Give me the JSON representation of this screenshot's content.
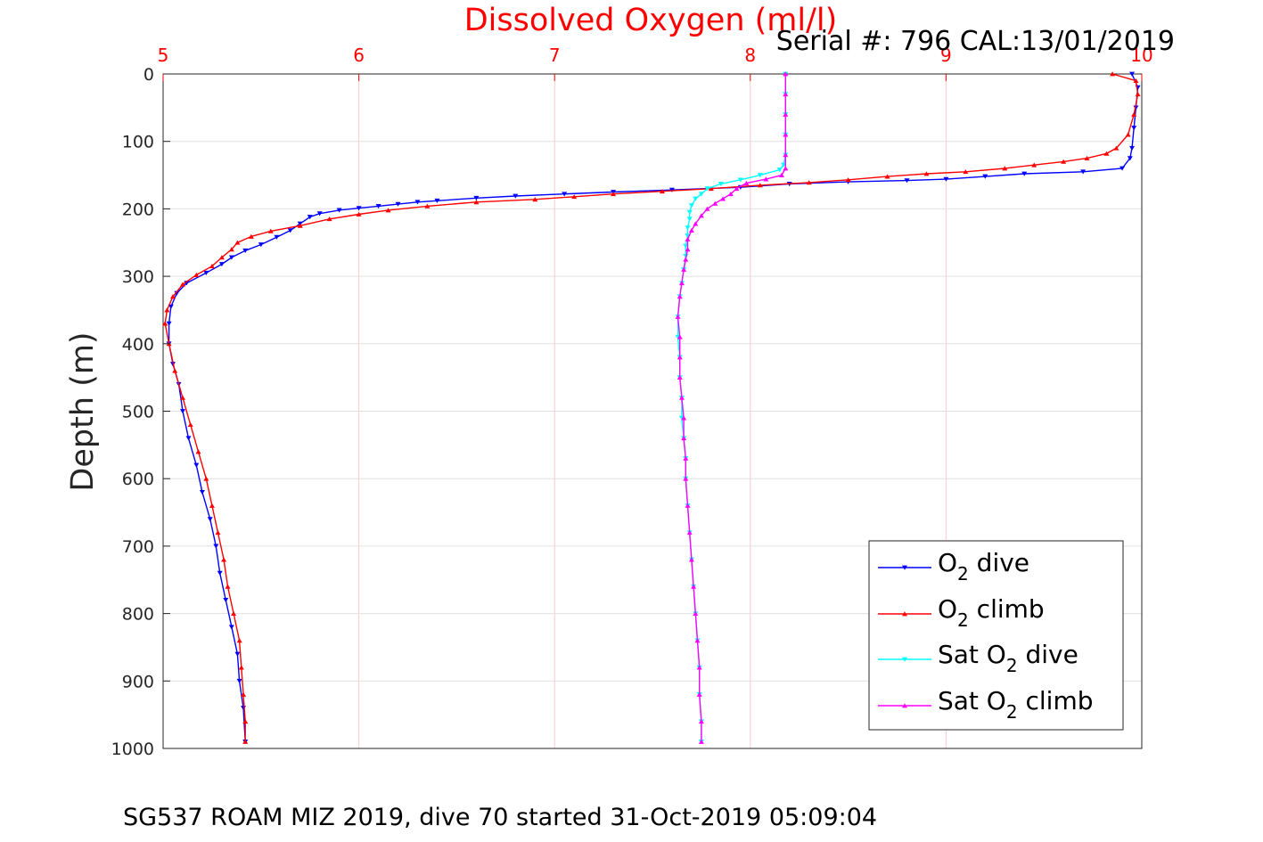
{
  "chart_data": {
    "type": "scatter",
    "title": "Dissolved Oxygen (ml/l)",
    "annotation": "Serial #: 796  CAL:13/01/2019",
    "caption": "SG537 ROAM MIZ 2019, dive 70 started 31-Oct-2019 05:09:04",
    "xlabel": "",
    "ylabel": "Depth (m)",
    "xlim": [
      5,
      10
    ],
    "ylim": [
      0,
      1000
    ],
    "y_reversed": true,
    "x_axis_position": "top",
    "x_ticks": [
      "5",
      "6",
      "7",
      "8",
      "9",
      "10"
    ],
    "y_ticks": [
      "0",
      "100",
      "200",
      "300",
      "400",
      "500",
      "600",
      "700",
      "800",
      "900",
      "1000"
    ],
    "grid": true,
    "legend_position": "bottom-right",
    "colors": {
      "title": "#ff0000",
      "x_ticks": "#ff0000",
      "grid": "#ffcccc",
      "y_grid": "#e0e0e0"
    },
    "legend": [
      {
        "base": "O",
        "sub": "2",
        "rest": " dive",
        "color": "#0000ff",
        "marker": "down-triangle"
      },
      {
        "base": "O",
        "sub": "2",
        "rest": " climb",
        "color": "#ff0000",
        "marker": "up-triangle"
      },
      {
        "base": "Sat O",
        "sub": "2",
        "rest": " dive",
        "color": "#00ffff",
        "marker": "down-triangle"
      },
      {
        "base": "Sat O",
        "sub": "2",
        "rest": " climb",
        "color": "#ff00ff",
        "marker": "up-triangle"
      }
    ],
    "series": [
      {
        "name": "O2 dive",
        "color": "#0000ff",
        "marker": "down",
        "points": [
          [
            9.95,
            0
          ],
          [
            9.98,
            20
          ],
          [
            9.97,
            50
          ],
          [
            9.96,
            80
          ],
          [
            9.95,
            110
          ],
          [
            9.94,
            125
          ],
          [
            9.9,
            140
          ],
          [
            9.7,
            145
          ],
          [
            9.4,
            148
          ],
          [
            9.2,
            152
          ],
          [
            9.0,
            156
          ],
          [
            8.8,
            158
          ],
          [
            8.5,
            160
          ],
          [
            8.2,
            163
          ],
          [
            7.95,
            168
          ],
          [
            7.6,
            172
          ],
          [
            7.3,
            175
          ],
          [
            7.05,
            178
          ],
          [
            6.8,
            181
          ],
          [
            6.6,
            184
          ],
          [
            6.4,
            188
          ],
          [
            6.3,
            190
          ],
          [
            6.2,
            193
          ],
          [
            6.1,
            196
          ],
          [
            6.0,
            199
          ],
          [
            5.9,
            202
          ],
          [
            5.8,
            207
          ],
          [
            5.75,
            212
          ],
          [
            5.7,
            222
          ],
          [
            5.65,
            232
          ],
          [
            5.58,
            242
          ],
          [
            5.5,
            253
          ],
          [
            5.42,
            262
          ],
          [
            5.35,
            272
          ],
          [
            5.3,
            282
          ],
          [
            5.22,
            295
          ],
          [
            5.12,
            310
          ],
          [
            5.07,
            325
          ],
          [
            5.04,
            345
          ],
          [
            5.03,
            370
          ],
          [
            5.03,
            400
          ],
          [
            5.05,
            430
          ],
          [
            5.08,
            460
          ],
          [
            5.1,
            500
          ],
          [
            5.13,
            540
          ],
          [
            5.17,
            580
          ],
          [
            5.2,
            620
          ],
          [
            5.24,
            660
          ],
          [
            5.27,
            700
          ],
          [
            5.29,
            740
          ],
          [
            5.32,
            780
          ],
          [
            5.35,
            820
          ],
          [
            5.38,
            860
          ],
          [
            5.39,
            900
          ],
          [
            5.41,
            940
          ],
          [
            5.42,
            990
          ]
        ]
      },
      {
        "name": "O2 climb",
        "color": "#ff0000",
        "marker": "up",
        "points": [
          [
            9.85,
            0
          ],
          [
            9.97,
            10
          ],
          [
            9.98,
            30
          ],
          [
            9.96,
            60
          ],
          [
            9.93,
            90
          ],
          [
            9.87,
            110
          ],
          [
            9.82,
            118
          ],
          [
            9.72,
            125
          ],
          [
            9.6,
            130
          ],
          [
            9.45,
            135
          ],
          [
            9.3,
            140
          ],
          [
            9.1,
            145
          ],
          [
            8.9,
            148
          ],
          [
            8.7,
            152
          ],
          [
            8.5,
            157
          ],
          [
            8.3,
            161
          ],
          [
            8.05,
            165
          ],
          [
            7.8,
            170
          ],
          [
            7.55,
            174
          ],
          [
            7.3,
            178
          ],
          [
            7.1,
            182
          ],
          [
            6.9,
            186
          ],
          [
            6.6,
            190
          ],
          [
            6.35,
            196
          ],
          [
            6.15,
            202
          ],
          [
            6.0,
            208
          ],
          [
            5.85,
            215
          ],
          [
            5.7,
            225
          ],
          [
            5.55,
            233
          ],
          [
            5.45,
            241
          ],
          [
            5.38,
            250
          ],
          [
            5.35,
            260
          ],
          [
            5.3,
            272
          ],
          [
            5.25,
            285
          ],
          [
            5.17,
            298
          ],
          [
            5.1,
            312
          ],
          [
            5.05,
            330
          ],
          [
            5.02,
            350
          ],
          [
            5.01,
            370
          ],
          [
            5.03,
            400
          ],
          [
            5.06,
            440
          ],
          [
            5.1,
            480
          ],
          [
            5.14,
            520
          ],
          [
            5.18,
            560
          ],
          [
            5.22,
            600
          ],
          [
            5.25,
            640
          ],
          [
            5.28,
            680
          ],
          [
            5.31,
            720
          ],
          [
            5.33,
            760
          ],
          [
            5.36,
            800
          ],
          [
            5.39,
            840
          ],
          [
            5.4,
            880
          ],
          [
            5.41,
            920
          ],
          [
            5.42,
            960
          ],
          [
            5.42,
            990
          ]
        ]
      },
      {
        "name": "Sat O2 dive",
        "color": "#00ffff",
        "marker": "down",
        "points": [
          [
            8.18,
            0
          ],
          [
            8.18,
            30
          ],
          [
            8.18,
            60
          ],
          [
            8.18,
            90
          ],
          [
            8.18,
            120
          ],
          [
            8.17,
            135
          ],
          [
            8.15,
            142
          ],
          [
            8.05,
            150
          ],
          [
            7.95,
            157
          ],
          [
            7.85,
            163
          ],
          [
            7.78,
            170
          ],
          [
            7.75,
            178
          ],
          [
            7.72,
            185
          ],
          [
            7.7,
            195
          ],
          [
            7.69,
            205
          ],
          [
            7.69,
            215
          ],
          [
            7.68,
            228
          ],
          [
            7.68,
            240
          ],
          [
            7.67,
            255
          ],
          [
            7.67,
            270
          ],
          [
            7.66,
            290
          ],
          [
            7.65,
            310
          ],
          [
            7.64,
            330
          ],
          [
            7.63,
            360
          ],
          [
            7.63,
            390
          ],
          [
            7.64,
            420
          ],
          [
            7.64,
            450
          ],
          [
            7.65,
            480
          ],
          [
            7.65,
            510
          ],
          [
            7.66,
            540
          ],
          [
            7.67,
            570
          ],
          [
            7.67,
            600
          ],
          [
            7.68,
            640
          ],
          [
            7.69,
            680
          ],
          [
            7.7,
            720
          ],
          [
            7.71,
            760
          ],
          [
            7.72,
            800
          ],
          [
            7.73,
            840
          ],
          [
            7.74,
            880
          ],
          [
            7.74,
            920
          ],
          [
            7.75,
            960
          ],
          [
            7.75,
            990
          ]
        ]
      },
      {
        "name": "Sat O2 climb",
        "color": "#ff00ff",
        "marker": "up",
        "points": [
          [
            8.18,
            0
          ],
          [
            8.18,
            30
          ],
          [
            8.18,
            60
          ],
          [
            8.18,
            90
          ],
          [
            8.18,
            120
          ],
          [
            8.18,
            140
          ],
          [
            8.16,
            150
          ],
          [
            8.08,
            156
          ],
          [
            7.98,
            162
          ],
          [
            7.93,
            170
          ],
          [
            7.9,
            178
          ],
          [
            7.86,
            185
          ],
          [
            7.82,
            192
          ],
          [
            7.78,
            200
          ],
          [
            7.75,
            210
          ],
          [
            7.72,
            222
          ],
          [
            7.7,
            232
          ],
          [
            7.68,
            245
          ],
          [
            7.68,
            260
          ],
          [
            7.67,
            275
          ],
          [
            7.66,
            290
          ],
          [
            7.65,
            310
          ],
          [
            7.64,
            330
          ],
          [
            7.63,
            360
          ],
          [
            7.64,
            390
          ],
          [
            7.64,
            420
          ],
          [
            7.64,
            450
          ],
          [
            7.65,
            480
          ],
          [
            7.66,
            510
          ],
          [
            7.66,
            540
          ],
          [
            7.67,
            570
          ],
          [
            7.67,
            600
          ],
          [
            7.68,
            640
          ],
          [
            7.69,
            680
          ],
          [
            7.7,
            720
          ],
          [
            7.71,
            760
          ],
          [
            7.72,
            800
          ],
          [
            7.73,
            840
          ],
          [
            7.74,
            880
          ],
          [
            7.74,
            920
          ],
          [
            7.75,
            960
          ],
          [
            7.75,
            990
          ]
        ]
      }
    ]
  }
}
